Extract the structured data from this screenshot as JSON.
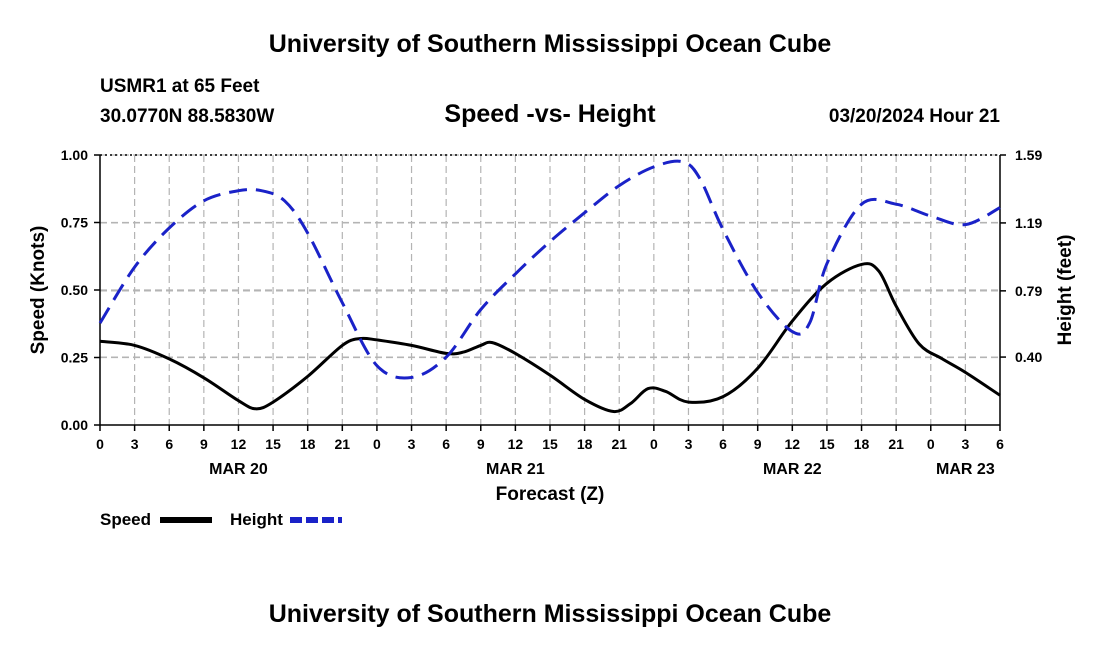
{
  "header": {
    "title": "University of Southern Mississippi Ocean Cube",
    "station": "USMR1 at 65 Feet",
    "coords": "30.0770N  88.5830W",
    "subtitle": "Speed -vs- Height",
    "datetime": "03/20/2024 Hour 21"
  },
  "footer": {
    "title": "University of Southern Mississippi Ocean Cube"
  },
  "chart_data": {
    "type": "line",
    "title": "Speed -vs- Height",
    "xlabel": "Forecast (Z)",
    "ylabel": "Speed (Knots)",
    "y2label": "Height (feet)",
    "xlim": [
      0,
      78
    ],
    "ylim": [
      0,
      1.0
    ],
    "y2lim": [
      0,
      1.59
    ],
    "x_ticks": [
      0,
      3,
      6,
      9,
      12,
      15,
      18,
      21,
      24,
      27,
      30,
      33,
      36,
      39,
      42,
      45,
      48,
      51,
      54,
      57,
      60,
      63,
      66,
      69,
      72,
      75,
      78
    ],
    "x_tick_labels": [
      "0",
      "3",
      "6",
      "9",
      "12",
      "15",
      "18",
      "21",
      "0",
      "3",
      "6",
      "9",
      "12",
      "15",
      "18",
      "21",
      "0",
      "3",
      "6",
      "9",
      "12",
      "15",
      "18",
      "21",
      "0",
      "3",
      "6"
    ],
    "day_labels": [
      {
        "x": 12,
        "label": "MAR 20"
      },
      {
        "x": 36,
        "label": "MAR 21"
      },
      {
        "x": 60,
        "label": "MAR 22"
      },
      {
        "x": 75,
        "label": "MAR 23"
      }
    ],
    "y_ticks": [
      0,
      0.25,
      0.5,
      0.75,
      1.0
    ],
    "y_tick_labels": [
      "0.00",
      "0.25",
      "0.50",
      "0.75",
      "1.00"
    ],
    "y2_ticks": [
      0.4,
      0.79,
      1.19,
      1.59
    ],
    "y2_tick_labels": [
      "0.40",
      "0.79",
      "1.19",
      "1.59"
    ],
    "grid": true,
    "legend": [
      {
        "name": "Speed",
        "color": "#000000",
        "style": "solid"
      },
      {
        "name": "Height",
        "color": "#1a22c8",
        "style": "dashed"
      }
    ],
    "series": [
      {
        "name": "Speed",
        "axis": "left",
        "color": "#000000",
        "style": "solid",
        "x": [
          0,
          3,
          6,
          9,
          12,
          13.5,
          15,
          18,
          21,
          22.5,
          24,
          27,
          30,
          31.5,
          33,
          34,
          36,
          39,
          42,
          44.5,
          46,
          47.5,
          49,
          51,
          54,
          57,
          60,
          63,
          66,
          67.5,
          69,
          71,
          73,
          75,
          78
        ],
        "values": [
          0.31,
          0.295,
          0.245,
          0.175,
          0.09,
          0.06,
          0.085,
          0.18,
          0.295,
          0.32,
          0.315,
          0.295,
          0.265,
          0.27,
          0.295,
          0.305,
          0.265,
          0.185,
          0.095,
          0.05,
          0.08,
          0.135,
          0.125,
          0.085,
          0.105,
          0.21,
          0.385,
          0.525,
          0.595,
          0.57,
          0.44,
          0.3,
          0.245,
          0.195,
          0.11
        ]
      },
      {
        "name": "Height",
        "axis": "right",
        "color": "#1a22c8",
        "style": "dashed",
        "x": [
          0,
          3,
          6,
          9,
          12,
          14,
          16,
          18,
          21,
          24,
          27,
          30,
          33,
          36,
          39,
          42,
          45,
          48,
          50.5,
          52,
          54,
          57,
          60,
          61.5,
          63,
          66,
          69,
          72,
          75,
          78
        ],
        "values": [
          0.6,
          0.93,
          1.16,
          1.32,
          1.38,
          1.38,
          1.32,
          1.13,
          0.72,
          0.35,
          0.28,
          0.4,
          0.68,
          0.89,
          1.08,
          1.25,
          1.41,
          1.52,
          1.55,
          1.45,
          1.15,
          0.78,
          0.55,
          0.6,
          0.95,
          1.3,
          1.3,
          1.23,
          1.18,
          1.28
        ]
      }
    ]
  }
}
